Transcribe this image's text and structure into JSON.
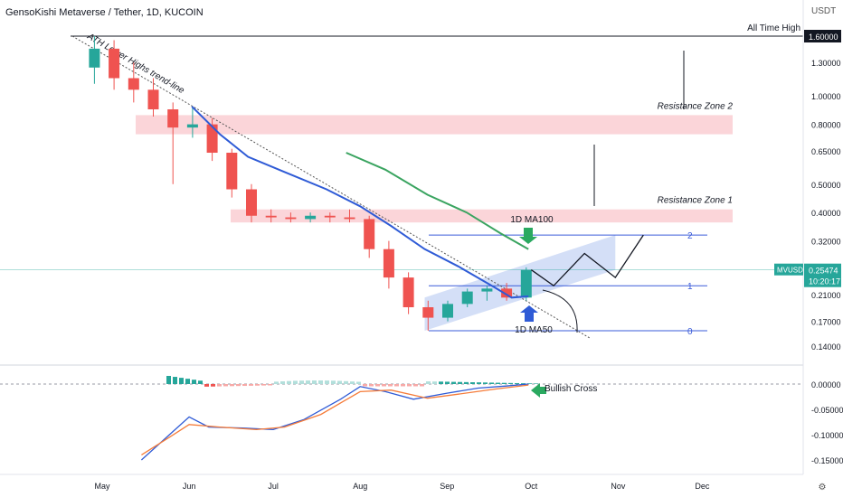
{
  "header": {
    "title": "GensoKishi Metaverse / Tether, 1D, KUCOIN",
    "currency": "USDT"
  },
  "chart_data": {
    "type": "candlestick",
    "y_scale": "log",
    "price_axis_ticks": [
      1.6,
      1.3,
      1.0,
      0.8,
      0.65,
      0.5,
      0.4,
      0.32,
      0.21,
      0.17,
      0.14
    ],
    "price_axis_labels": [
      "1.60000",
      "1.30000",
      "1.00000",
      "0.80000",
      "0.65000",
      "0.50000",
      "0.40000",
      "0.32000",
      "0.21000",
      "0.17000",
      "0.14000"
    ],
    "macd_axis_ticks": [
      0.0,
      -0.05,
      -0.1,
      -0.15
    ],
    "macd_axis_labels": [
      "0.00000",
      "-0.05000",
      "-0.10000",
      "-0.15000"
    ],
    "x_axis_labels": [
      {
        "text": "May",
        "date": "2022-05-01"
      },
      {
        "text": "Jun",
        "date": "2022-06-01"
      },
      {
        "text": "Jul",
        "date": "2022-07-01"
      },
      {
        "text": "Aug",
        "date": "2022-08-01"
      },
      {
        "text": "Sep",
        "date": "2022-09-01"
      },
      {
        "text": "Oct",
        "date": "2022-10-01"
      },
      {
        "text": "Nov",
        "date": "2022-11-01"
      },
      {
        "text": "Dec",
        "date": "2022-12-01"
      }
    ],
    "current_price": {
      "symbol": "MVUSDT",
      "value": "0.25474",
      "countdown": "10:20:17"
    },
    "all_time_high": {
      "label": "All Time High",
      "value": "1.60000",
      "price": 1.6
    },
    "resistance_zones": [
      {
        "label": "Resistance Zone 2",
        "low": 0.74,
        "high": 0.86
      },
      {
        "label": "Resistance Zone 1",
        "low": 0.37,
        "high": 0.41
      }
    ],
    "fib_levels": [
      {
        "label": "2",
        "price": 0.335
      },
      {
        "label": "1",
        "price": 0.225
      },
      {
        "label": "0",
        "price": 0.158
      }
    ],
    "annotations": {
      "ath_trendline": "ATH Lower Highs trend-line",
      "ma100": "1D MA100",
      "ma50": "1D MA50",
      "macd_cross": "Bullish Cross"
    },
    "ma50": [
      [
        "2022-06-02",
        0.92
      ],
      [
        "2022-06-12",
        0.74
      ],
      [
        "2022-06-22",
        0.62
      ],
      [
        "2022-07-05",
        0.55
      ],
      [
        "2022-07-20",
        0.48
      ],
      [
        "2022-08-01",
        0.42
      ],
      [
        "2022-08-12",
        0.36
      ],
      [
        "2022-08-24",
        0.3
      ],
      [
        "2022-09-05",
        0.262
      ],
      [
        "2022-09-18",
        0.222
      ],
      [
        "2022-09-24",
        0.205
      ],
      [
        "2022-09-30",
        0.207
      ]
    ],
    "ma100": [
      [
        "2022-07-27",
        0.64
      ],
      [
        "2022-08-10",
        0.56
      ],
      [
        "2022-08-25",
        0.46
      ],
      [
        "2022-09-08",
        0.4
      ],
      [
        "2022-09-20",
        0.34
      ],
      [
        "2022-09-30",
        0.3
      ]
    ],
    "ohlc_weekly": [
      [
        "2022-04-25",
        1.25,
        1.6,
        1.1,
        1.45
      ],
      [
        "2022-05-02",
        1.45,
        1.55,
        1.05,
        1.15
      ],
      [
        "2022-05-09",
        1.15,
        1.3,
        0.95,
        1.05
      ],
      [
        "2022-05-16",
        1.05,
        1.15,
        0.85,
        0.9
      ],
      [
        "2022-05-23",
        0.9,
        0.95,
        0.5,
        0.78
      ],
      [
        "2022-05-30",
        0.78,
        0.92,
        0.72,
        0.8
      ],
      [
        "2022-06-06",
        0.8,
        0.84,
        0.6,
        0.64
      ],
      [
        "2022-06-13",
        0.64,
        0.66,
        0.45,
        0.48
      ],
      [
        "2022-06-20",
        0.48,
        0.5,
        0.37,
        0.39
      ],
      [
        "2022-06-27",
        0.39,
        0.41,
        0.37,
        0.385
      ],
      [
        "2022-07-04",
        0.385,
        0.4,
        0.37,
        0.38
      ],
      [
        "2022-07-11",
        0.38,
        0.4,
        0.37,
        0.39
      ],
      [
        "2022-07-18",
        0.39,
        0.4,
        0.37,
        0.385
      ],
      [
        "2022-07-25",
        0.385,
        0.41,
        0.37,
        0.38
      ],
      [
        "2022-08-01",
        0.38,
        0.39,
        0.28,
        0.3
      ],
      [
        "2022-08-08",
        0.3,
        0.32,
        0.22,
        0.24
      ],
      [
        "2022-08-15",
        0.24,
        0.25,
        0.18,
        0.19
      ],
      [
        "2022-08-22",
        0.19,
        0.2,
        0.158,
        0.175
      ],
      [
        "2022-08-29",
        0.175,
        0.2,
        0.17,
        0.195
      ],
      [
        "2022-09-05",
        0.195,
        0.22,
        0.19,
        0.215
      ],
      [
        "2022-09-12",
        0.215,
        0.225,
        0.2,
        0.22
      ],
      [
        "2022-09-19",
        0.22,
        0.23,
        0.2,
        0.205
      ],
      [
        "2022-09-26",
        0.205,
        0.26,
        0.2,
        0.255
      ]
    ],
    "macd": [
      [
        "2022-05-15",
        -0.15
      ],
      [
        "2022-05-25",
        -0.1
      ],
      [
        "2022-06-01",
        -0.065
      ],
      [
        "2022-06-08",
        -0.085
      ],
      [
        "2022-06-20",
        -0.087
      ],
      [
        "2022-07-01",
        -0.09
      ],
      [
        "2022-07-12",
        -0.07
      ],
      [
        "2022-07-25",
        -0.03
      ],
      [
        "2022-08-01",
        -0.005
      ],
      [
        "2022-08-10",
        -0.015
      ],
      [
        "2022-08-20",
        -0.03
      ],
      [
        "2022-09-01",
        -0.018
      ],
      [
        "2022-09-12",
        -0.008
      ],
      [
        "2022-09-22",
        -0.004
      ],
      [
        "2022-09-30",
        0.0
      ]
    ],
    "macd_signal": [
      [
        "2022-05-15",
        -0.14
      ],
      [
        "2022-05-25",
        -0.105
      ],
      [
        "2022-06-01",
        -0.08
      ],
      [
        "2022-06-12",
        -0.085
      ],
      [
        "2022-06-25",
        -0.09
      ],
      [
        "2022-07-05",
        -0.085
      ],
      [
        "2022-07-18",
        -0.06
      ],
      [
        "2022-08-01",
        -0.015
      ],
      [
        "2022-08-12",
        -0.012
      ],
      [
        "2022-08-25",
        -0.028
      ],
      [
        "2022-09-05",
        -0.02
      ],
      [
        "2022-09-18",
        -0.01
      ],
      [
        "2022-09-30",
        -0.002
      ]
    ]
  }
}
